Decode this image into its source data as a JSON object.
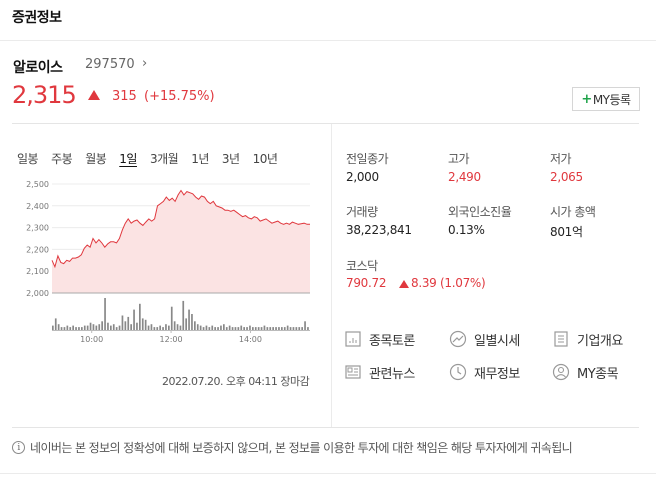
{
  "section_title": "증권정보",
  "stock": {
    "name": "알로이스",
    "code": "297570",
    "price": "2,315",
    "change": "315",
    "change_pct": "(+15.75%)",
    "my_button": "MY등록"
  },
  "tabs": [
    {
      "label": "일봉",
      "active": false
    },
    {
      "label": "주봉",
      "active": false
    },
    {
      "label": "월봉",
      "active": false
    },
    {
      "label": "1일",
      "active": true
    },
    {
      "label": "3개월",
      "active": false
    },
    {
      "label": "1년",
      "active": false
    },
    {
      "label": "3년",
      "active": false
    },
    {
      "label": "10년",
      "active": false
    }
  ],
  "chart_data": {
    "type": "area",
    "ylim": [
      2000,
      2500
    ],
    "y_ticks": [
      "2,500",
      "2,400",
      "2,300",
      "2,200",
      "2,100",
      "2,000"
    ],
    "x_ticks": [
      "10:00",
      "12:00",
      "14:00"
    ],
    "baseline": 2000,
    "series": [
      {
        "values": [
          2150,
          2120,
          2170,
          2140,
          2135,
          2150,
          2145,
          2160,
          2160,
          2165,
          2175,
          2205,
          2220,
          2210,
          2250,
          2230,
          2245,
          2230,
          2210,
          2225,
          2235,
          2235,
          2230,
          2250,
          2290,
          2320,
          2340,
          2320,
          2330,
          2335,
          2320,
          2310,
          2325,
          2340,
          2330,
          2340,
          2400,
          2410,
          2420,
          2440,
          2425,
          2435,
          2420,
          2450,
          2470,
          2450,
          2465,
          2460,
          2455,
          2440,
          2430,
          2445,
          2440,
          2420,
          2410,
          2420,
          2400,
          2395,
          2390,
          2380,
          2380,
          2375,
          2380,
          2370,
          2360,
          2350,
          2355,
          2345,
          2340,
          2350,
          2345,
          2330,
          2335,
          2340,
          2330,
          2320,
          2325,
          2330,
          2320,
          2315,
          2320,
          2315,
          2325,
          2320,
          2315,
          2318,
          2320,
          2315,
          2315
        ]
      }
    ],
    "volume": [
      3,
      8,
      4,
      2,
      2,
      3,
      2,
      3,
      2,
      2,
      2,
      3,
      3,
      5,
      4,
      3,
      4,
      6,
      22,
      5,
      3,
      4,
      2,
      3,
      10,
      6,
      9,
      4,
      14,
      5,
      18,
      8,
      7,
      3,
      4,
      2,
      2,
      3,
      2,
      4,
      3,
      16,
      6,
      4,
      3,
      20,
      8,
      14,
      11,
      6,
      4,
      3,
      2,
      3,
      2,
      3,
      2,
      2,
      3,
      4,
      2,
      3,
      2,
      2,
      2,
      3,
      2,
      2,
      3,
      2,
      2,
      2,
      2,
      3,
      2,
      2,
      2,
      2,
      2,
      2,
      2,
      3,
      2,
      2,
      2,
      2,
      2,
      6,
      2
    ],
    "grid": true
  },
  "timestamp": "2022.07.20. 오후 04:11 장마감",
  "info": [
    {
      "label": "전일종가",
      "value": "2,000",
      "red": false
    },
    {
      "label": "고가",
      "value": "2,490",
      "red": true
    },
    {
      "label": "저가",
      "value": "2,065",
      "red": true
    },
    {
      "label": "거래량",
      "value": "38,223,841",
      "red": false
    },
    {
      "label": "외국인소진율",
      "value": "0.13%",
      "red": false
    },
    {
      "label": "시가 총액",
      "value": "801억",
      "red": false
    }
  ],
  "index": {
    "label": "코스닥",
    "value": "790.72",
    "change": "8.39 (1.07%)"
  },
  "menu": [
    {
      "label": "종목토론",
      "icon": "discussion-icon"
    },
    {
      "label": "일별시세",
      "icon": "trend-icon"
    },
    {
      "label": "기업개요",
      "icon": "document-icon"
    },
    {
      "label": "관련뉴스",
      "icon": "news-icon"
    },
    {
      "label": "재무정보",
      "icon": "clock-icon"
    },
    {
      "label": "MY종목",
      "icon": "user-icon"
    }
  ],
  "notice": "네이버는 본 정보의 정확성에 대해 보증하지 않으며, 본 정보를 이용한 투자에 대한 책임은 해당 투자자에게 귀속됩니",
  "colors": {
    "up": "#e0383e",
    "area_fill": "#fbe3e3",
    "volume": "#888888",
    "add_plus": "#1fa34a"
  }
}
